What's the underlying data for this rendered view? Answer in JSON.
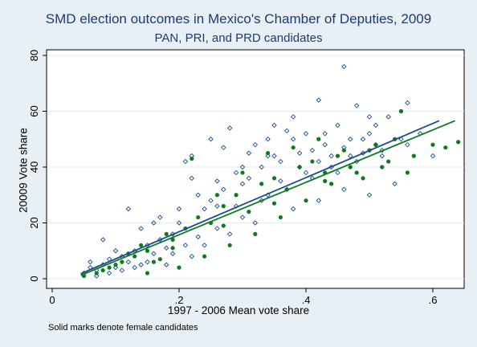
{
  "chart_data": {
    "type": "scatter",
    "title": "SMD election outcomes in Mexico's Chamber of Deputies, 2009",
    "subtitle": "PAN, PRI, and PRD candidates",
    "xlabel": "1997 - 2006 Mean vote share",
    "ylabel": "20009 Vote share",
    "note": "Solid marks denote female candidates",
    "xlim": [
      0,
      0.65
    ],
    "ylim": [
      0,
      82
    ],
    "xticks": [
      {
        "v": 0,
        "label": "0"
      },
      {
        "v": 0.2,
        "label": ".2"
      },
      {
        "v": 0.4,
        "label": ".4"
      },
      {
        "v": 0.6,
        "label": ".6"
      }
    ],
    "yticks": [
      {
        "v": 0,
        "label": "0"
      },
      {
        "v": 20,
        "label": "20"
      },
      {
        "v": 40,
        "label": "40"
      },
      {
        "v": 60,
        "label": "60"
      },
      {
        "v": 80,
        "label": "80"
      }
    ],
    "grid": "horizontal",
    "series": [
      {
        "marker": "hollow-diamond",
        "color": "#1a4f8a",
        "points": [
          [
            0.05,
            2
          ],
          [
            0.06,
            4
          ],
          [
            0.07,
            3
          ],
          [
            0.08,
            5
          ],
          [
            0.09,
            7
          ],
          [
            0.1,
            4
          ],
          [
            0.11,
            8
          ],
          [
            0.12,
            6
          ],
          [
            0.13,
            10
          ],
          [
            0.14,
            5
          ],
          [
            0.15,
            12
          ],
          [
            0.16,
            9
          ],
          [
            0.17,
            14
          ],
          [
            0.18,
            11
          ],
          [
            0.19,
            16
          ],
          [
            0.2,
            20
          ],
          [
            0.21,
            42
          ],
          [
            0.22,
            44
          ],
          [
            0.23,
            30
          ],
          [
            0.24,
            25
          ],
          [
            0.25,
            50
          ],
          [
            0.26,
            35
          ],
          [
            0.27,
            47
          ],
          [
            0.28,
            54
          ],
          [
            0.29,
            38
          ],
          [
            0.3,
            40
          ],
          [
            0.31,
            45
          ],
          [
            0.32,
            48
          ],
          [
            0.33,
            28
          ],
          [
            0.34,
            50
          ],
          [
            0.35,
            55
          ],
          [
            0.36,
            42
          ],
          [
            0.37,
            53
          ],
          [
            0.38,
            58
          ],
          [
            0.39,
            45
          ],
          [
            0.4,
            52
          ],
          [
            0.41,
            36
          ],
          [
            0.42,
            64
          ],
          [
            0.43,
            48
          ],
          [
            0.44,
            44
          ],
          [
            0.45,
            55
          ],
          [
            0.46,
            76
          ],
          [
            0.47,
            50
          ],
          [
            0.48,
            62
          ],
          [
            0.49,
            45
          ],
          [
            0.5,
            58
          ],
          [
            0.51,
            48
          ],
          [
            0.52,
            46
          ],
          [
            0.53,
            58
          ],
          [
            0.55,
            50
          ],
          [
            0.56,
            48
          ],
          [
            0.58,
            52
          ],
          [
            0.6,
            44
          ],
          [
            0.12,
            25
          ],
          [
            0.18,
            5
          ],
          [
            0.22,
            8
          ],
          [
            0.26,
            18
          ],
          [
            0.3,
            22
          ],
          [
            0.34,
            30
          ],
          [
            0.38,
            25
          ],
          [
            0.42,
            28
          ],
          [
            0.46,
            32
          ],
          [
            0.5,
            30
          ],
          [
            0.54,
            34
          ],
          [
            0.08,
            14
          ],
          [
            0.1,
            10
          ],
          [
            0.14,
            18
          ],
          [
            0.16,
            20
          ],
          [
            0.2,
            25
          ],
          [
            0.24,
            12
          ],
          [
            0.28,
            16
          ],
          [
            0.32,
            20
          ],
          [
            0.36,
            35
          ],
          [
            0.4,
            38
          ],
          [
            0.44,
            40
          ],
          [
            0.48,
            42
          ],
          [
            0.52,
            44
          ],
          [
            0.56,
            63
          ],
          [
            0.09,
            2
          ],
          [
            0.11,
            3
          ],
          [
            0.13,
            4
          ],
          [
            0.15,
            6
          ],
          [
            0.17,
            22
          ],
          [
            0.19,
            9
          ],
          [
            0.21,
            12
          ],
          [
            0.23,
            15
          ],
          [
            0.25,
            28
          ],
          [
            0.27,
            32
          ],
          [
            0.29,
            26
          ],
          [
            0.31,
            36
          ],
          [
            0.33,
            40
          ],
          [
            0.35,
            44
          ],
          [
            0.37,
            32
          ],
          [
            0.39,
            40
          ],
          [
            0.41,
            46
          ],
          [
            0.43,
            52
          ],
          [
            0.45,
            38
          ],
          [
            0.47,
            44
          ],
          [
            0.49,
            50
          ],
          [
            0.51,
            55
          ],
          [
            0.06,
            6
          ],
          [
            0.07,
            1
          ],
          [
            0.22,
            36
          ],
          [
            0.26,
            26
          ],
          [
            0.3,
            34
          ],
          [
            0.34,
            44
          ],
          [
            0.38,
            50
          ],
          [
            0.42,
            42
          ],
          [
            0.46,
            47
          ],
          [
            0.5,
            52
          ]
        ]
      },
      {
        "marker": "filled-circle",
        "color": "#0d7a1e",
        "points": [
          [
            0.05,
            1
          ],
          [
            0.07,
            2
          ],
          [
            0.09,
            4
          ],
          [
            0.11,
            6
          ],
          [
            0.13,
            8
          ],
          [
            0.15,
            10
          ],
          [
            0.17,
            7
          ],
          [
            0.19,
            14
          ],
          [
            0.21,
            18
          ],
          [
            0.23,
            22
          ],
          [
            0.25,
            20
          ],
          [
            0.27,
            26
          ],
          [
            0.29,
            30
          ],
          [
            0.31,
            24
          ],
          [
            0.33,
            34
          ],
          [
            0.35,
            36
          ],
          [
            0.37,
            32
          ],
          [
            0.39,
            40
          ],
          [
            0.41,
            42
          ],
          [
            0.43,
            38
          ],
          [
            0.45,
            44
          ],
          [
            0.47,
            40
          ],
          [
            0.49,
            36
          ],
          [
            0.51,
            48
          ],
          [
            0.53,
            42
          ],
          [
            0.55,
            60
          ],
          [
            0.57,
            44
          ],
          [
            0.6,
            48
          ],
          [
            0.62,
            47
          ],
          [
            0.64,
            49
          ],
          [
            0.1,
            5
          ],
          [
            0.14,
            12
          ],
          [
            0.18,
            16
          ],
          [
            0.22,
            43
          ],
          [
            0.26,
            30
          ],
          [
            0.3,
            38
          ],
          [
            0.34,
            45
          ],
          [
            0.38,
            47
          ],
          [
            0.42,
            50
          ],
          [
            0.46,
            46
          ],
          [
            0.5,
            46
          ],
          [
            0.54,
            50
          ],
          [
            0.08,
            3
          ],
          [
            0.12,
            9
          ],
          [
            0.16,
            6
          ],
          [
            0.2,
            4
          ],
          [
            0.24,
            8
          ],
          [
            0.28,
            12
          ],
          [
            0.32,
            16
          ],
          [
            0.36,
            22
          ],
          [
            0.4,
            28
          ],
          [
            0.44,
            34
          ],
          [
            0.48,
            38
          ],
          [
            0.52,
            40
          ],
          [
            0.56,
            38
          ],
          [
            0.15,
            2
          ],
          [
            0.19,
            11
          ],
          [
            0.27,
            19
          ],
          [
            0.35,
            27
          ],
          [
            0.43,
            35
          ]
        ]
      }
    ],
    "fits": [
      {
        "color": "#1a4f8a",
        "x": [
          0.045,
          0.61
        ],
        "y": [
          1.8,
          56.6
        ]
      },
      {
        "color": "#0d7a1e",
        "x": [
          0.045,
          0.635
        ],
        "y": [
          1.2,
          56.6
        ]
      }
    ]
  }
}
